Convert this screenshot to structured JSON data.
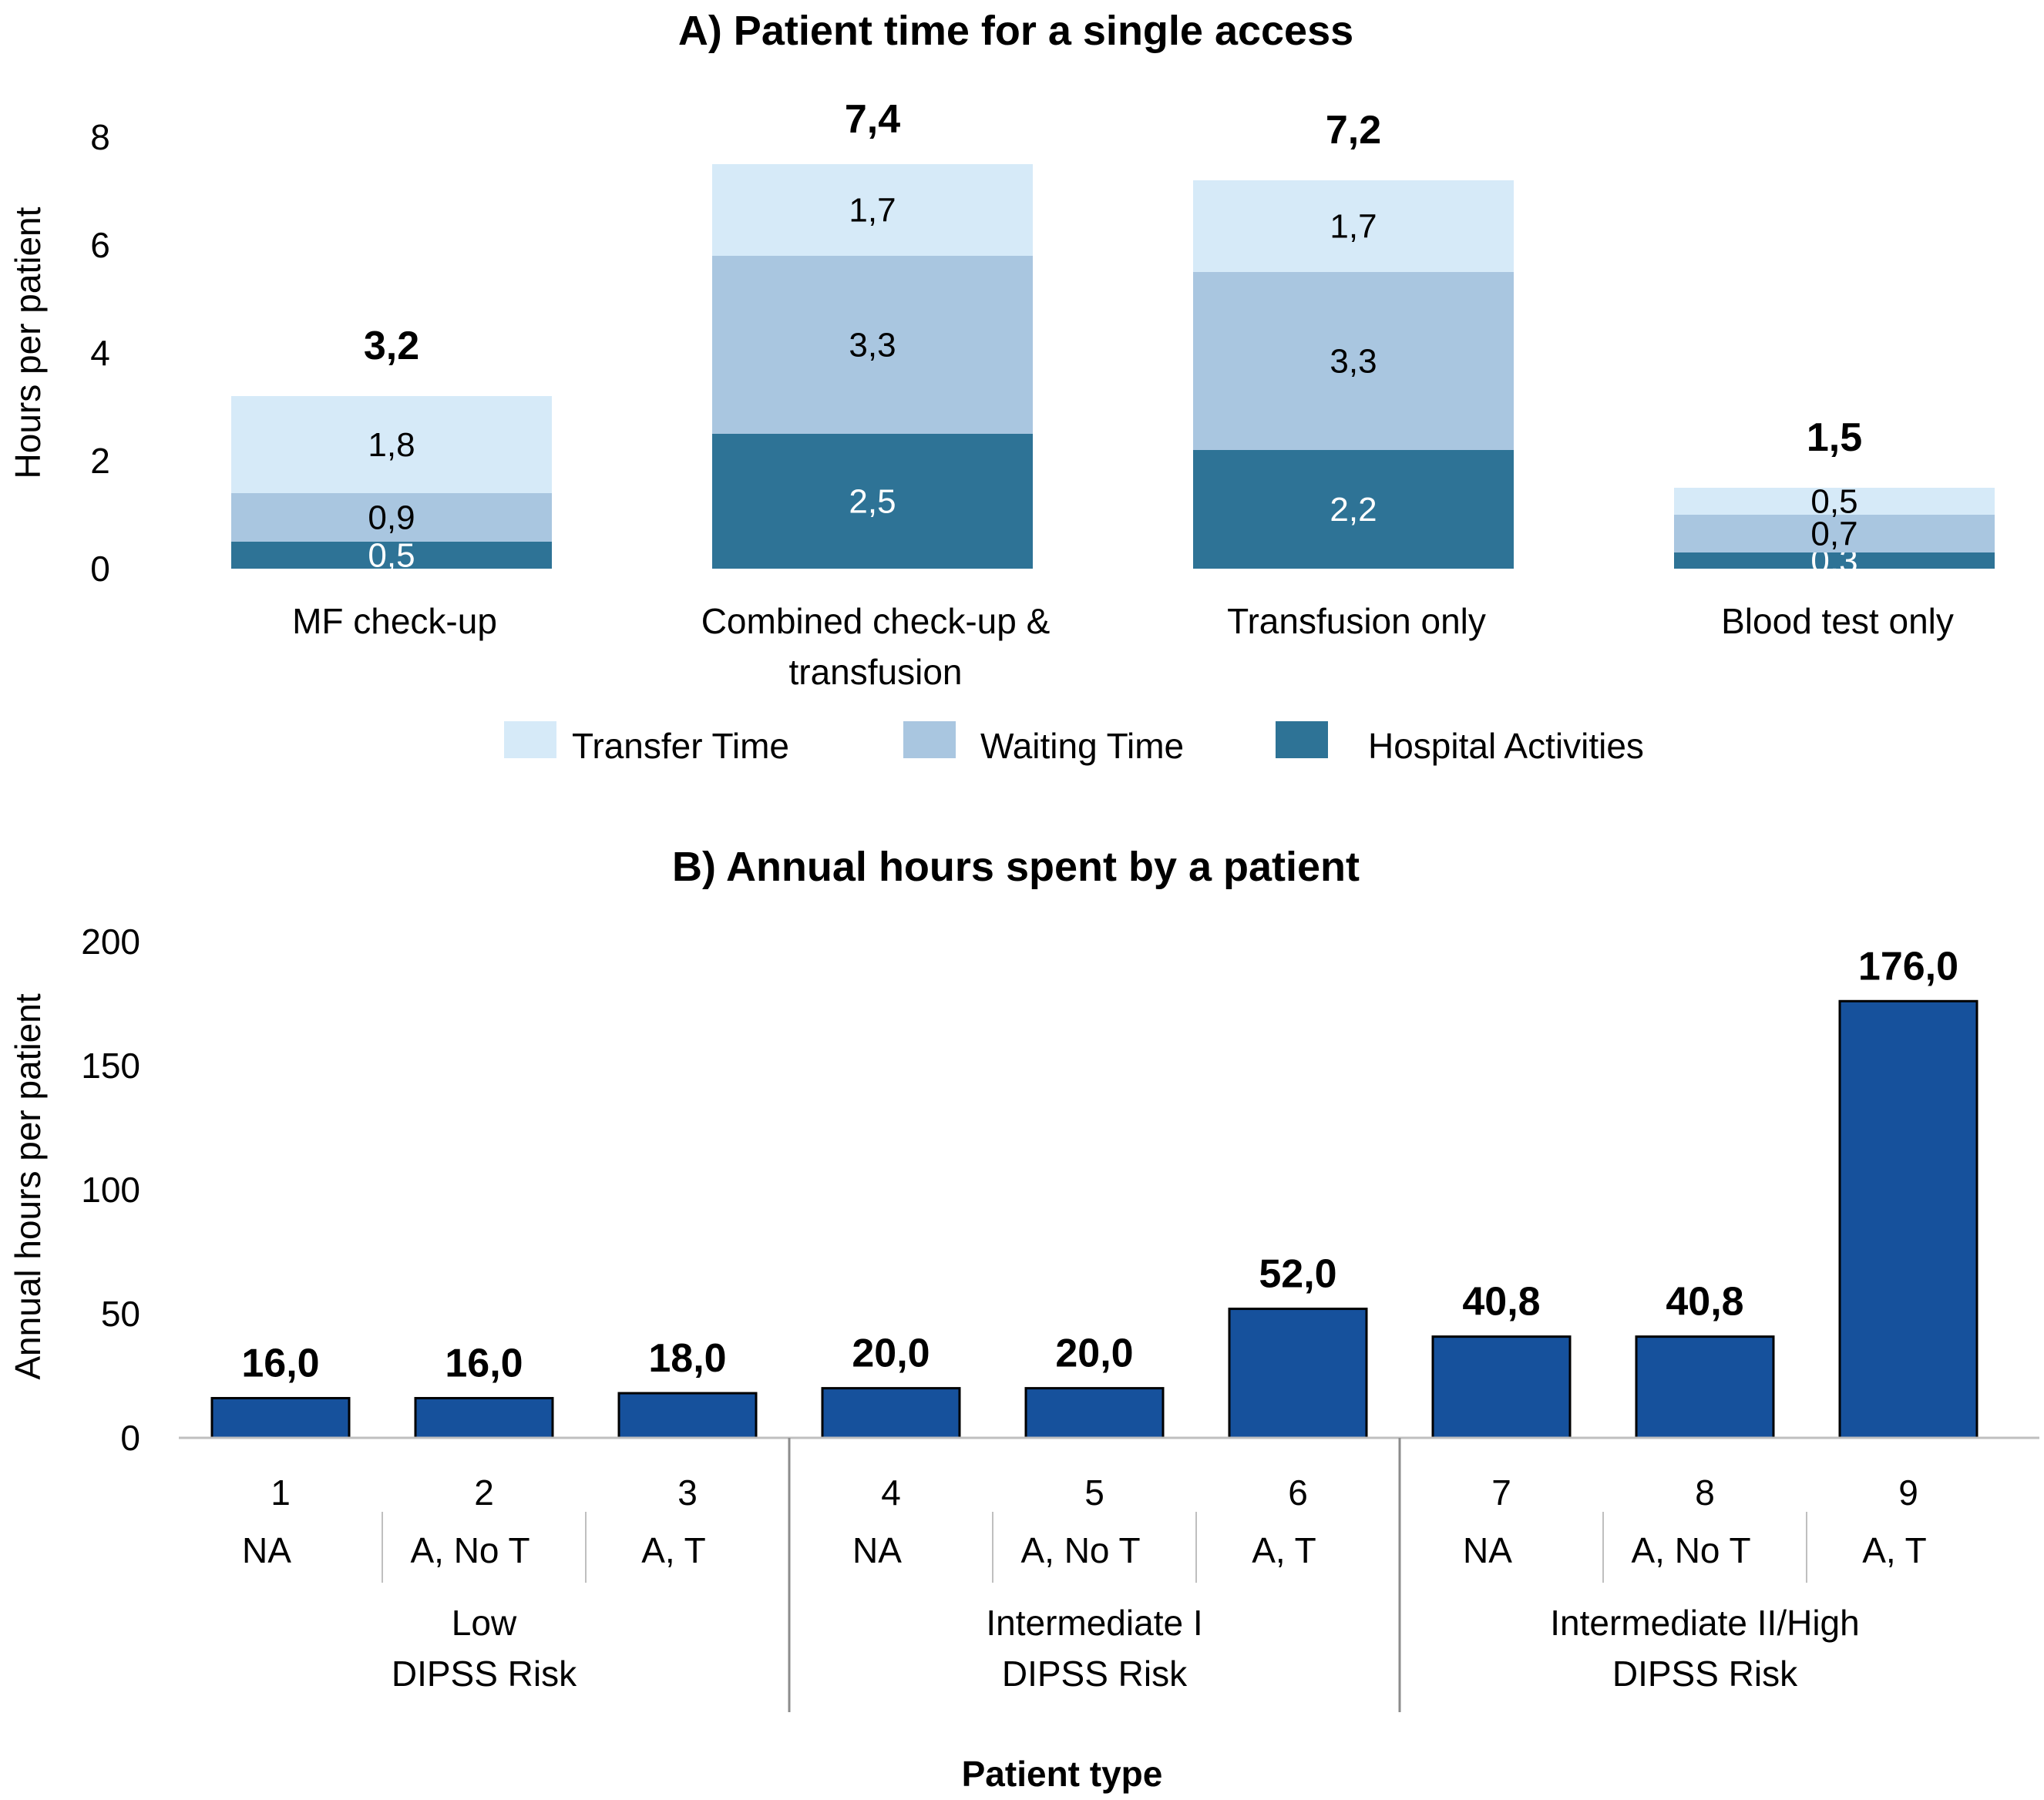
{
  "colors": {
    "transfer": "#d6eaf8",
    "waiting": "#a9c6e0",
    "hospital": "#2e7396",
    "annual_bar": "#16519c",
    "axis": "#bfbfbf",
    "divider": "#8c8c8c"
  },
  "chart_data": [
    {
      "type": "bar",
      "stacked": true,
      "title": "A) Patient time for a single access",
      "ylabel": "Hours per patient",
      "xlabel": "",
      "ylim": [
        0,
        8
      ],
      "yticks": [
        "0",
        "2",
        "4",
        "6",
        "8"
      ],
      "yticks_values": [
        0,
        2,
        4,
        6,
        8
      ],
      "categories": [
        [
          "MF check-up"
        ],
        [
          "Combined check-up &",
          "transfusion"
        ],
        [
          "Transfusion only"
        ],
        [
          "Blood test only"
        ]
      ],
      "series": [
        {
          "name": "Hospital Activities",
          "values": [
            0.5,
            2.5,
            2.2,
            0.3
          ],
          "labels": [
            "0,5",
            "2,5",
            "2,2",
            "0,3"
          ]
        },
        {
          "name": "Waiting Time",
          "values": [
            0.9,
            3.3,
            3.3,
            0.7
          ],
          "labels": [
            "0,9",
            "3,3",
            "3,3",
            "0,7"
          ]
        },
        {
          "name": "Transfer Time",
          "values": [
            1.8,
            1.7,
            1.7,
            0.5
          ],
          "labels": [
            "1,8",
            "1,7",
            "1,7",
            "0,5"
          ]
        }
      ],
      "totals": [
        3.2,
        7.4,
        7.2,
        1.5
      ],
      "total_labels": [
        "3,2",
        "7,4",
        "7,2",
        "1,5"
      ],
      "legend": [
        "Transfer Time",
        "Waiting Time",
        "Hospital Activities"
      ],
      "grid": false
    },
    {
      "type": "bar",
      "title": "B) Annual hours spent by a patient",
      "ylabel": "Annual hours per patient",
      "xlabel": "Patient type",
      "ylim": [
        0,
        200
      ],
      "yticks": [
        "0",
        "50",
        "100",
        "150",
        "200"
      ],
      "yticks_values": [
        0,
        50,
        100,
        150,
        200
      ],
      "categories": [
        "1",
        "2",
        "3",
        "4",
        "5",
        "6",
        "7",
        "8",
        "9"
      ],
      "subcategories": [
        "NA",
        "A, No T",
        "A, T",
        "NA",
        "A, No T",
        "A, T",
        "NA",
        "A, No T",
        "A, T"
      ],
      "groups": [
        {
          "lines": [
            "Low",
            "DIPSS Risk"
          ],
          "span": [
            0,
            2
          ]
        },
        {
          "lines": [
            "Intermediate I",
            "DIPSS Risk"
          ],
          "span": [
            3,
            5
          ]
        },
        {
          "lines": [
            "Intermediate II/High",
            "DIPSS Risk"
          ],
          "span": [
            6,
            8
          ]
        }
      ],
      "values": [
        16.0,
        16.0,
        18.0,
        20.0,
        20.0,
        52.0,
        40.8,
        40.8,
        176.0
      ],
      "value_labels": [
        "16,0",
        "16,0",
        "18,0",
        "20,0",
        "20,0",
        "52,0",
        "40,8",
        "40,8",
        "176,0"
      ],
      "grid": false
    }
  ]
}
